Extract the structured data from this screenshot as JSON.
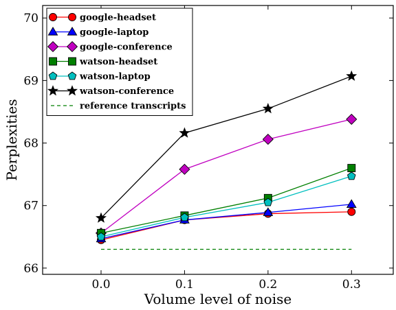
{
  "chart_data": {
    "type": "line",
    "xlabel": "Volume level of noise",
    "ylabel": "Perplexities",
    "x": [
      0.0,
      0.1,
      0.2,
      0.3
    ],
    "xlim": [
      -0.07,
      0.35
    ],
    "ylim": [
      65.9,
      70.2
    ],
    "xticks": [
      "0.0",
      "0.1",
      "0.2",
      "0.3"
    ],
    "yticks": [
      "66",
      "67",
      "68",
      "69",
      "70"
    ],
    "grid": false,
    "legend_position": "top-left",
    "series": [
      {
        "name": "google-headset",
        "color": "#ff0000",
        "marker": "circle",
        "values": [
          66.45,
          66.77,
          66.87,
          66.9
        ]
      },
      {
        "name": "google-laptop",
        "color": "#0000ff",
        "marker": "triangle",
        "values": [
          66.47,
          66.77,
          66.89,
          67.02
        ]
      },
      {
        "name": "google-conference",
        "color": "#c000c0",
        "marker": "diamond",
        "values": [
          66.56,
          67.58,
          68.06,
          68.38
        ]
      },
      {
        "name": "watson-headset",
        "color": "#007f00",
        "marker": "square",
        "values": [
          66.56,
          66.84,
          67.12,
          67.6
        ]
      },
      {
        "name": "watson-laptop",
        "color": "#00bfbf",
        "marker": "pentagon",
        "values": [
          66.5,
          66.81,
          67.05,
          67.47
        ]
      },
      {
        "name": "watson-conference",
        "color": "#000000",
        "marker": "star",
        "values": [
          66.8,
          68.16,
          68.55,
          69.07
        ]
      },
      {
        "name": "reference transcripts",
        "color": "#007f00",
        "marker": "none",
        "dashed": true,
        "values": [
          66.3,
          66.3,
          66.3,
          66.3
        ]
      }
    ]
  }
}
